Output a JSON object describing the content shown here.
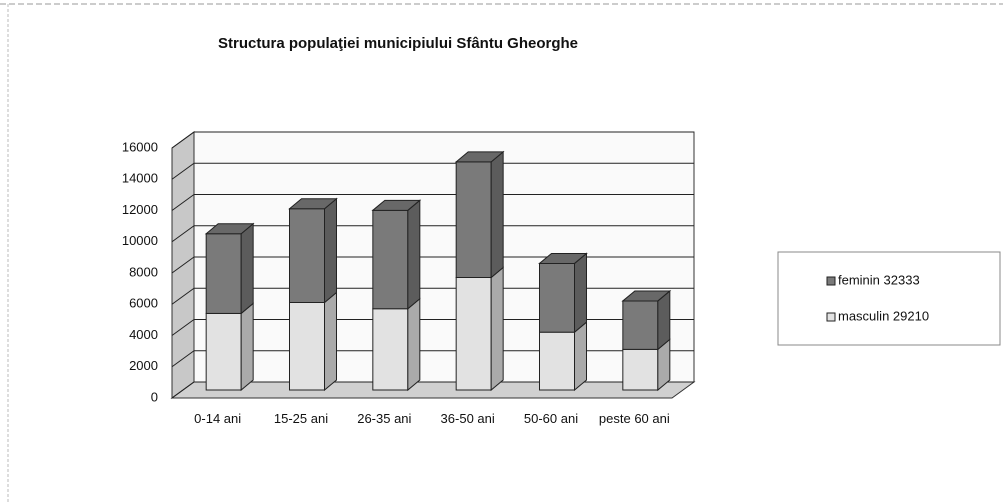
{
  "chart_data": {
    "type": "bar",
    "stacked": true,
    "title": "Structura populaţiei municipiului Sfântu Gheorghe",
    "categories": [
      "0-14 ani",
      "15-25 ani",
      "26-35 ani",
      "36-50 ani",
      "50-60 ani",
      "peste 60 ani"
    ],
    "series": [
      {
        "name": "masculin 29210",
        "color": "#e2e2e2",
        "values": [
          4900,
          5600,
          5200,
          7200,
          3700,
          2600
        ]
      },
      {
        "name": "feminin 32333",
        "color": "#7a7a7a",
        "values": [
          5100,
          6000,
          6300,
          7400,
          4400,
          3100
        ]
      }
    ],
    "ylim": [
      0,
      16000
    ],
    "yticks": [
      0,
      2000,
      4000,
      6000,
      8000,
      10000,
      12000,
      14000,
      16000
    ],
    "grid": true,
    "legend": "right"
  }
}
